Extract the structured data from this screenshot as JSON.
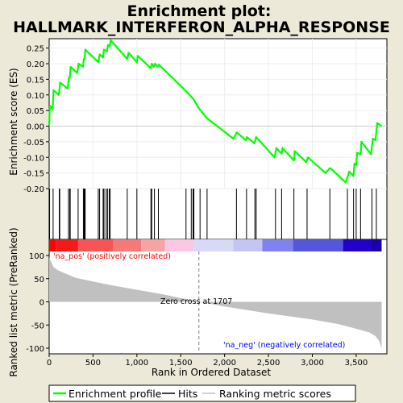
{
  "title_line1": "Enrichment plot:",
  "title_line2": "HALLMARK_INTERFERON_ALPHA_RESPONSE",
  "legend": {
    "enrichment_profile": "Enrichment profile",
    "hits": "Hits",
    "ranking_metric": "Ranking metric scores"
  },
  "colors": {
    "background": "#ece9d8",
    "profile": "#00ff00",
    "hits": "#000000",
    "metric_fill": "#c0c0c0",
    "zero_cross": "#808080",
    "pos_label": "#ff0000",
    "neg_label": "#0000ff"
  },
  "chart_data": {
    "type": "line",
    "xlabel": "Rank in Ordered Dataset",
    "ylabel_top": "Enrichment score (ES)",
    "ylabel_bottom": "Ranked list metric (PreRanked)",
    "x_range": [
      0,
      3850
    ],
    "x_ticks": [
      0,
      500,
      1000,
      1500,
      2000,
      2500,
      3000,
      3500
    ],
    "x_tick_labels": [
      "0",
      "500",
      "1,000",
      "1,500",
      "2,000",
      "2,500",
      "3,000",
      "3,500"
    ],
    "es_range": [
      -0.2,
      0.28
    ],
    "es_ticks": [
      0.25,
      0.2,
      0.15,
      0.1,
      0.05,
      0.0,
      -0.05,
      -0.1,
      -0.15,
      -0.2
    ],
    "es_tick_labels": [
      "0.25",
      "0.20",
      "0.15",
      "0.10",
      "0.05",
      "0.00",
      "-0.05",
      "-0.10",
      "-0.15",
      "-0.20"
    ],
    "metric_range": [
      -100,
      100
    ],
    "metric_ticks": [
      100,
      50,
      0,
      -50,
      -100
    ],
    "metric_tick_labels": [
      "100",
      "50",
      "0",
      "-50",
      "-100"
    ],
    "enrichment_profile": {
      "x": [
        0,
        5,
        10,
        40,
        50,
        110,
        125,
        210,
        225,
        235,
        245,
        320,
        335,
        385,
        395,
        405,
        412,
        560,
        575,
        615,
        625,
        660,
        670,
        690,
        700,
        890,
        905,
        1000,
        1010,
        1160,
        1170,
        1195,
        1205,
        1240,
        1250,
        1550,
        1600,
        1650,
        1700,
        1800,
        2100,
        2140,
        2240,
        2255,
        2340,
        2355,
        2360,
        2570,
        2590,
        2650,
        2660,
        2790,
        2800,
        2930,
        2950,
        3150,
        3200,
        3210,
        3380,
        3400,
        3420,
        3470,
        3480,
        3500,
        3510,
        3550,
        3560,
        3670,
        3690,
        3720,
        3740,
        3790
      ],
      "y": [
        0.0,
        0.04,
        0.065,
        0.055,
        0.115,
        0.1,
        0.14,
        0.12,
        0.155,
        0.155,
        0.19,
        0.17,
        0.2,
        0.19,
        0.215,
        0.215,
        0.245,
        0.205,
        0.23,
        0.22,
        0.245,
        0.24,
        0.26,
        0.255,
        0.275,
        0.215,
        0.235,
        0.205,
        0.225,
        0.185,
        0.2,
        0.19,
        0.2,
        0.19,
        0.197,
        0.115,
        0.1,
        0.085,
        0.06,
        0.025,
        -0.04,
        -0.02,
        -0.045,
        -0.035,
        -0.055,
        -0.04,
        -0.035,
        -0.1,
        -0.07,
        -0.088,
        -0.07,
        -0.11,
        -0.08,
        -0.115,
        -0.1,
        -0.15,
        -0.135,
        -0.135,
        -0.18,
        -0.165,
        -0.145,
        -0.16,
        -0.12,
        -0.125,
        -0.085,
        -0.09,
        -0.05,
        -0.09,
        -0.04,
        -0.045,
        0.01,
        0.0
      ]
    },
    "hits": [
      5,
      45,
      115,
      120,
      220,
      235,
      240,
      330,
      390,
      400,
      405,
      410,
      560,
      575,
      615,
      625,
      650,
      665,
      685,
      695,
      890,
      1000,
      1160,
      1170,
      1200,
      1245,
      1560,
      1620,
      1640,
      1650,
      1720,
      1800,
      2135,
      2250,
      2345,
      2360,
      2580,
      2650,
      2790,
      2940,
      3200,
      3400,
      3470,
      3500,
      3550,
      3680,
      3730
    ],
    "metric_curve": {
      "x": [
        0,
        50,
        100,
        200,
        300,
        500,
        700,
        1000,
        1300,
        1707,
        2000,
        2500,
        3000,
        3300,
        3500,
        3650,
        3720,
        3760,
        3790
      ],
      "y": [
        95,
        75,
        68,
        60,
        52,
        44,
        36,
        26,
        16,
        0,
        -10,
        -25,
        -38,
        -48,
        -58,
        -66,
        -74,
        -84,
        -100
      ]
    },
    "zero_cross_x": 1707,
    "annotations": {
      "pos": "'na_pos' (positively correlated)",
      "neg": "'na_neg' (negatively correlated)",
      "zero": "Zero cross at 1707"
    }
  }
}
